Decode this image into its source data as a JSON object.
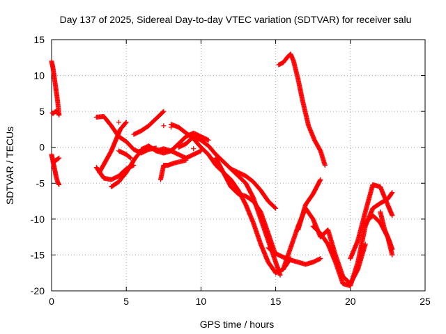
{
  "chart_data": {
    "type": "scatter",
    "title": "Day 137 of 2025, Sidereal Day-to-day VTEC variation (SDTVAR) for receiver salu",
    "xlabel": "GPS time / hours",
    "ylabel": "SDTVAR / TECUs",
    "xlim": [
      0,
      25
    ],
    "ylim": [
      -20,
      15
    ],
    "xticks": [
      "0",
      "5",
      "10",
      "15",
      "20",
      "25"
    ],
    "yticks": [
      "15",
      "10",
      "5",
      "0",
      "-5",
      "-10",
      "-15",
      "-20"
    ],
    "grid": true,
    "marker": "plus",
    "color": "#ff0000",
    "tracks": [
      {
        "x": [
          0.0,
          0.1,
          0.2,
          0.3,
          0.4,
          0.5
        ],
        "y": [
          12.0,
          11.0,
          9.5,
          8.0,
          6.5,
          4.5
        ]
      },
      {
        "x": [
          0.05,
          0.1,
          0.2,
          0.3,
          0.4,
          0.5
        ],
        "y": [
          4.8,
          4.7,
          4.9,
          5.0,
          4.8,
          4.6
        ]
      },
      {
        "x": [
          0.0,
          0.1,
          0.2,
          0.3,
          0.4,
          0.5
        ],
        "y": [
          -1.0,
          -2.0,
          -3.0,
          -4.0,
          -4.8,
          -5.2
        ]
      },
      {
        "x": [
          0.1,
          0.3,
          0.5
        ],
        "y": [
          -2.0,
          -1.8,
          -1.5
        ]
      },
      {
        "x": [
          3.0,
          3.5,
          4.0,
          4.5,
          5.0,
          5.5
        ],
        "y": [
          -2.8,
          -4.3,
          -4.5,
          -4.0,
          -3.0,
          -2.5
        ]
      },
      {
        "x": [
          3.0,
          3.5,
          4.0,
          4.5,
          5.0,
          5.5,
          6.0,
          6.5,
          7.0
        ],
        "y": [
          4.2,
          4.3,
          3.0,
          1.5,
          0.8,
          -0.3,
          -0.8,
          -0.3,
          -0.1
        ]
      },
      {
        "x": [
          3.2,
          3.6,
          4.0,
          4.3,
          4.6,
          5.0
        ],
        "y": [
          -3.5,
          -2.0,
          -0.5,
          1.0,
          2.5,
          3.5
        ]
      },
      {
        "x": [
          4.0,
          4.5,
          5.0,
          5.3,
          5.6,
          6.0
        ],
        "y": [
          -5.5,
          -4.8,
          -3.5,
          -2.5,
          -1.5,
          -0.5
        ]
      },
      {
        "x": [
          4.5,
          5.0,
          5.3
        ],
        "y": [
          -0.5,
          -1.0,
          -1.5
        ]
      },
      {
        "x": [
          5.5,
          6.0,
          6.5,
          7.0,
          7.5
        ],
        "y": [
          1.8,
          2.3,
          3.0,
          4.0,
          5.0
        ]
      },
      {
        "x": [
          6.0,
          6.5,
          7.0,
          7.5,
          8.0,
          8.5,
          9.0,
          9.5,
          10.0
        ],
        "y": [
          -0.3,
          0.2,
          -0.5,
          -0.8,
          -0.5,
          -1.0,
          -1.5,
          -1.0,
          -0.5
        ]
      },
      {
        "x": [
          7.3,
          7.5,
          7.8,
          8.2,
          8.6,
          9.0
        ],
        "y": [
          -4.5,
          -2.5,
          -2.5,
          -2.2,
          -2.0,
          -1.8
        ]
      },
      {
        "x": [
          7.0,
          7.5,
          8.0,
          8.5,
          9.0,
          9.5,
          10.0,
          10.5
        ],
        "y": [
          -0.5,
          -0.2,
          -0.5,
          0.5,
          1.5,
          2.0,
          1.5,
          1.0
        ]
      },
      {
        "x": [
          8.0,
          8.5,
          9.0,
          9.5,
          10.0
        ],
        "y": [
          3.2,
          2.8,
          2.0,
          1.2,
          0.0
        ]
      },
      {
        "x": [
          8.5,
          9.0,
          9.5,
          10.0,
          10.5,
          11.0,
          11.5,
          12.0,
          12.5,
          13.0,
          13.5,
          14.0,
          14.5,
          15.0,
          15.3
        ],
        "y": [
          0.0,
          0.5,
          1.5,
          1.0,
          0.2,
          -1.0,
          -2.0,
          -3.0,
          -4.0,
          -5.0,
          -7.0,
          -10.0,
          -13.0,
          -16.0,
          -17.8
        ]
      },
      {
        "x": [
          10.0,
          10.5,
          11.0,
          11.5,
          12.0,
          12.5,
          13.0,
          13.5,
          14.0,
          14.5,
          15.0,
          15.5,
          16.0
        ],
        "y": [
          0.0,
          -1.0,
          -2.5,
          -3.5,
          -4.5,
          -6.0,
          -8.0,
          -10.5,
          -13.5,
          -16.0,
          -17.5,
          -17.0,
          -15.5
        ]
      },
      {
        "x": [
          11.0,
          11.5,
          12.0,
          12.5,
          13.0,
          13.5,
          14.0,
          14.5,
          15.0
        ],
        "y": [
          -1.5,
          -3.5,
          -5.5,
          -6.5,
          -6.8,
          -7.5,
          -9.0,
          -12.0,
          -15.0
        ]
      },
      {
        "x": [
          12.0,
          12.5,
          13.0,
          13.5,
          14.0,
          14.5,
          15.0
        ],
        "y": [
          -3.0,
          -3.5,
          -4.0,
          -4.8,
          -6.0,
          -7.5,
          -8.5
        ]
      },
      {
        "x": [
          14.5,
          15.0,
          15.5,
          16.0,
          16.5,
          17.0,
          17.5,
          18.0
        ],
        "y": [
          -14.0,
          -14.8,
          -15.3,
          -15.7,
          -16.0,
          -16.3,
          -16.0,
          -15.5
        ]
      },
      {
        "x": [
          15.2,
          15.5,
          15.8,
          16.0,
          16.2,
          16.5,
          16.8,
          17.2,
          17.6,
          18.0,
          18.3
        ],
        "y": [
          11.5,
          11.8,
          12.6,
          13.0,
          12.0,
          9.5,
          6.5,
          3.0,
          1.0,
          -0.5,
          -2.5
        ]
      },
      {
        "x": [
          15.5,
          16.0,
          16.5,
          17.0,
          17.5,
          18.0,
          18.5,
          19.0,
          19.5,
          20.0,
          20.5,
          21.0
        ],
        "y": [
          -17.0,
          -14.0,
          -11.0,
          -8.5,
          -10.0,
          -12.5,
          -11.5,
          -15.0,
          -18.0,
          -19.0,
          -17.0,
          -13.5
        ]
      },
      {
        "x": [
          16.5,
          17.0,
          17.5,
          18.0
        ],
        "y": [
          -11.5,
          -8.0,
          -6.5,
          -4.5
        ]
      },
      {
        "x": [
          17.5,
          18.0,
          18.5,
          19.0,
          19.5,
          20.0,
          20.5,
          21.0,
          21.5,
          22.0,
          22.5,
          22.8
        ],
        "y": [
          -11.0,
          -12.0,
          -13.5,
          -16.0,
          -19.0,
          -19.3,
          -16.0,
          -11.0,
          -8.5,
          -7.8,
          -7.2,
          -6.3
        ]
      },
      {
        "x": [
          20.0,
          20.5,
          21.0,
          21.5,
          22.0,
          22.5,
          22.8
        ],
        "y": [
          -15.5,
          -13.0,
          -9.0,
          -5.2,
          -5.5,
          -8.0,
          -9.5
        ]
      },
      {
        "x": [
          21.0,
          21.5,
          22.0,
          22.5,
          22.8
        ],
        "y": [
          -10.5,
          -9.5,
          -10.5,
          -12.5,
          -15.0
        ]
      },
      {
        "x": [
          22.0,
          22.3,
          22.6,
          22.8
        ],
        "y": [
          -9.0,
          -11.5,
          -13.0,
          -14.2
        ]
      }
    ],
    "scatter_points": [
      {
        "x": [
          4.5,
          5.0,
          7.5,
          8.0,
          9.5,
          11.0
        ],
        "y": [
          3.5,
          0.8,
          3.0,
          2.8,
          -0.2,
          -1.5
        ]
      }
    ]
  }
}
